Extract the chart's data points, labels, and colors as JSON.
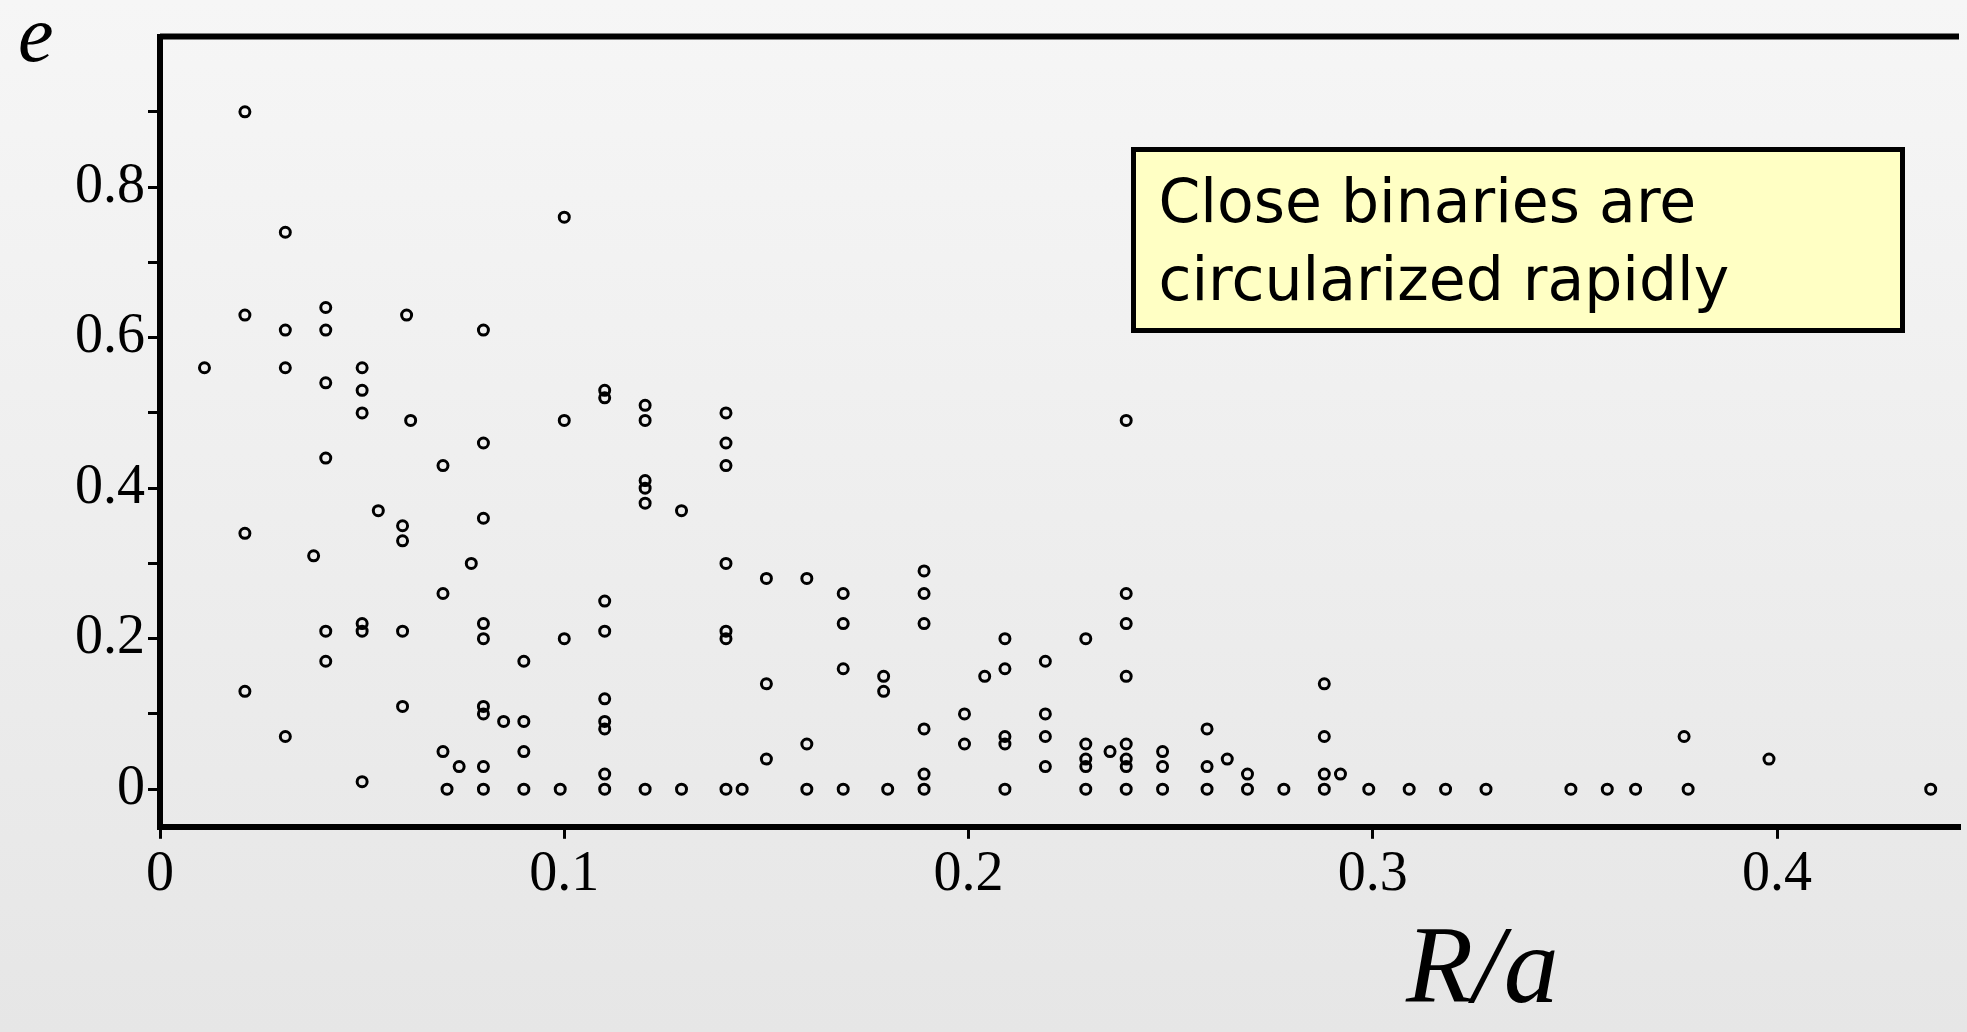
{
  "chart_data": {
    "type": "scatter",
    "xlabel": "R/a",
    "ylabel": "e",
    "annotations": [
      "Close binaries are circularized rapidly"
    ],
    "xlim": [
      0,
      0.445
    ],
    "ylim": [
      -0.05,
      1.0
    ],
    "xticks": [
      0,
      0.1,
      0.2,
      0.3,
      0.4
    ],
    "yticks": [
      0,
      {
        "value": 0.1,
        "label": null
      },
      0.2,
      {
        "value": 0.3,
        "label": null
      },
      0.4,
      {
        "value": 0.5,
        "label": null
      },
      0.6,
      {
        "value": 0.7,
        "label": null
      },
      0.8,
      {
        "value": 0.9,
        "label": null
      }
    ],
    "grid": false,
    "legend": false,
    "marker": "circle",
    "series": [
      {
        "color": "#000000",
        "x": [
          0.021,
          0.031,
          0.1,
          0.021,
          0.031,
          0.031,
          0.011,
          0.041,
          0.041,
          0.041,
          0.05,
          0.05,
          0.05,
          0.061,
          0.062,
          0.041,
          0.054,
          0.06,
          0.06,
          0.07,
          0.08,
          0.08,
          0.08,
          0.021,
          0.038,
          0.077,
          0.07,
          0.041,
          0.041,
          0.05,
          0.05,
          0.06,
          0.08,
          0.08,
          0.09,
          0.1,
          0.1,
          0.11,
          0.11,
          0.12,
          0.12,
          0.12,
          0.12,
          0.12,
          0.129,
          0.14,
          0.14,
          0.14,
          0.14,
          0.14,
          0.14,
          0.15,
          0.16,
          0.169,
          0.169,
          0.11,
          0.11,
          0.179,
          0.179,
          0.189,
          0.189,
          0.189,
          0.209,
          0.209,
          0.204,
          0.219,
          0.229,
          0.239,
          0.239,
          0.239,
          0.239,
          0.021,
          0.031,
          0.05,
          0.06,
          0.07,
          0.074,
          0.08,
          0.08,
          0.08,
          0.085,
          0.09,
          0.09,
          0.11,
          0.11,
          0.11,
          0.11,
          0.15,
          0.15,
          0.16,
          0.169,
          0.189,
          0.189,
          0.199,
          0.199,
          0.209,
          0.209,
          0.219,
          0.219,
          0.219,
          0.229,
          0.229,
          0.229,
          0.235,
          0.239,
          0.239,
          0.239,
          0.248,
          0.248,
          0.259,
          0.259,
          0.264,
          0.269,
          0.288,
          0.288,
          0.288,
          0.292,
          0.377,
          0.398,
          0.071,
          0.08,
          0.09,
          0.099,
          0.11,
          0.12,
          0.129,
          0.14,
          0.144,
          0.16,
          0.169,
          0.18,
          0.189,
          0.209,
          0.229,
          0.239,
          0.248,
          0.259,
          0.269,
          0.278,
          0.288,
          0.299,
          0.309,
          0.318,
          0.328,
          0.349,
          0.358,
          0.365,
          0.378,
          0.438
        ],
        "values": [
          0.9,
          0.74,
          0.76,
          0.63,
          0.61,
          0.56,
          0.56,
          0.64,
          0.61,
          0.54,
          0.56,
          0.53,
          0.5,
          0.63,
          0.49,
          0.44,
          0.37,
          0.35,
          0.33,
          0.43,
          0.61,
          0.46,
          0.36,
          0.34,
          0.31,
          0.3,
          0.26,
          0.21,
          0.17,
          0.22,
          0.21,
          0.21,
          0.22,
          0.2,
          0.17,
          0.2,
          0.49,
          0.53,
          0.52,
          0.51,
          0.49,
          0.41,
          0.4,
          0.38,
          0.37,
          0.5,
          0.46,
          0.43,
          0.3,
          0.21,
          0.2,
          0.28,
          0.28,
          0.26,
          0.22,
          0.25,
          0.21,
          0.15,
          0.13,
          0.29,
          0.26,
          0.22,
          0.2,
          0.16,
          0.15,
          0.17,
          0.2,
          0.26,
          0.22,
          0.15,
          0.49,
          0.13,
          0.07,
          0.01,
          0.11,
          0.05,
          0.03,
          0.11,
          0.1,
          0.03,
          0.09,
          0.09,
          0.05,
          0.12,
          0.09,
          0.08,
          0.02,
          0.14,
          0.04,
          0.06,
          0.16,
          0.08,
          0.02,
          0.1,
          0.06,
          0.07,
          0.06,
          0.1,
          0.07,
          0.03,
          0.06,
          0.04,
          0.03,
          0.05,
          0.06,
          0.04,
          0.03,
          0.05,
          0.03,
          0.08,
          0.03,
          0.04,
          0.02,
          0.14,
          0.07,
          0.02,
          0.02,
          0.07,
          0.04,
          0,
          0,
          0,
          0,
          0,
          0,
          0,
          0,
          0,
          0,
          0,
          0,
          0,
          0,
          0,
          0,
          0,
          0,
          0,
          0,
          0,
          0,
          0,
          0,
          0,
          0,
          0,
          0,
          0,
          0
        ]
      }
    ]
  }
}
